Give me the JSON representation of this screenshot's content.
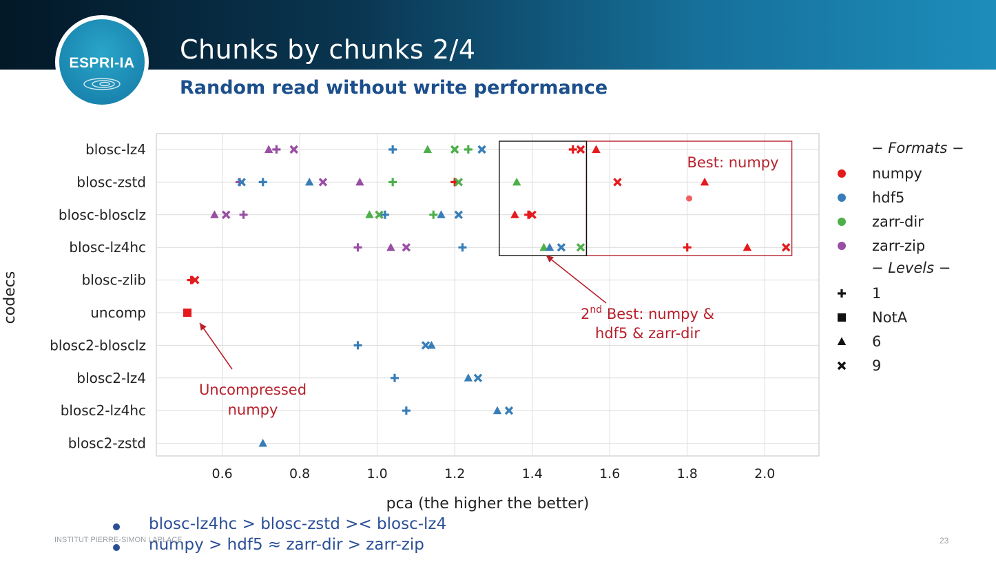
{
  "slide": {
    "logo_text": "ESPRI-IA",
    "title": "Chunks by chunks 2/4",
    "subtitle": "Random read without write performance",
    "footer": "INSTITUT PIERRE-SIMON LAPLACE",
    "page_number": "23",
    "bullets": [
      "blosc-lz4hc > blosc-zstd >< blosc-lz4",
      "numpy > hdf5 ≈ zarr-dir > zarr-zip"
    ],
    "colors": {
      "header_dark": "#021827",
      "header_light": "#1d8dbb",
      "accent": "#1c4f8c",
      "annotation": "#b8202c"
    }
  },
  "chart_data": {
    "type": "scatter",
    "xlabel": "pca (the higher the better)",
    "ylabel": "codecs",
    "xlim": [
      0.43,
      2.14
    ],
    "xticks": [
      0.6,
      0.8,
      1.0,
      1.2,
      1.4,
      1.6,
      1.8,
      2.0
    ],
    "xtick_labels": [
      "0.6",
      "0.8",
      "1.0",
      "1.2",
      "1.4",
      "1.6",
      "1.8",
      "2.0"
    ],
    "categories": [
      "blosc-lz4",
      "blosc-zstd",
      "blosc-blosclz",
      "blosc-lz4hc",
      "blosc-zlib",
      "uncomp",
      "blosc2-blosclz",
      "blosc2-lz4",
      "blosc2-lz4hc",
      "blosc2-zstd"
    ],
    "grid": true,
    "legend_position": "right",
    "formats_title": "− Formats −",
    "levels_title": "− Levels −",
    "formats": [
      {
        "name": "numpy",
        "color": "#e41a1c"
      },
      {
        "name": "hdf5",
        "color": "#377eb8"
      },
      {
        "name": "zarr-dir",
        "color": "#4daf4a"
      },
      {
        "name": "zarr-zip",
        "color": "#984ea3"
      }
    ],
    "levels": [
      {
        "name": "1",
        "marker": "plus"
      },
      {
        "name": "NotA",
        "marker": "square"
      },
      {
        "name": "6",
        "marker": "triangle"
      },
      {
        "name": "9",
        "marker": "x"
      }
    ],
    "points": [
      {
        "codec": "blosc-lz4",
        "format": "zarr-zip",
        "level": "6",
        "x": 0.72
      },
      {
        "codec": "blosc-lz4",
        "format": "zarr-zip",
        "level": "1",
        "x": 0.74
      },
      {
        "codec": "blosc-lz4",
        "format": "zarr-zip",
        "level": "9",
        "x": 0.785
      },
      {
        "codec": "blosc-lz4",
        "format": "hdf5",
        "level": "1",
        "x": 1.04
      },
      {
        "codec": "blosc-lz4",
        "format": "zarr-dir",
        "level": "6",
        "x": 1.13
      },
      {
        "codec": "blosc-lz4",
        "format": "zarr-dir",
        "level": "9",
        "x": 1.2
      },
      {
        "codec": "blosc-lz4",
        "format": "zarr-dir",
        "level": "1",
        "x": 1.235
      },
      {
        "codec": "blosc-lz4",
        "format": "hdf5",
        "level": "9",
        "x": 1.27
      },
      {
        "codec": "blosc-lz4",
        "format": "numpy",
        "level": "1",
        "x": 1.505
      },
      {
        "codec": "blosc-lz4",
        "format": "numpy",
        "level": "9",
        "x": 1.525
      },
      {
        "codec": "blosc-lz4",
        "format": "numpy",
        "level": "6",
        "x": 1.565
      },
      {
        "codec": "blosc-zstd",
        "format": "zarr-zip",
        "level": "1",
        "x": 0.645
      },
      {
        "codec": "blosc-zstd",
        "format": "hdf5",
        "level": "9",
        "x": 0.65
      },
      {
        "codec": "blosc-zstd",
        "format": "hdf5",
        "level": "1",
        "x": 0.705
      },
      {
        "codec": "blosc-zstd",
        "format": "hdf5",
        "level": "6",
        "x": 0.825
      },
      {
        "codec": "blosc-zstd",
        "format": "zarr-zip",
        "level": "9",
        "x": 0.86
      },
      {
        "codec": "blosc-zstd",
        "format": "zarr-zip",
        "level": "6",
        "x": 0.955
      },
      {
        "codec": "blosc-zstd",
        "format": "zarr-dir",
        "level": "1",
        "x": 1.04
      },
      {
        "codec": "blosc-zstd",
        "format": "numpy",
        "level": "1",
        "x": 1.2
      },
      {
        "codec": "blosc-zstd",
        "format": "zarr-dir",
        "level": "9",
        "x": 1.21
      },
      {
        "codec": "blosc-zstd",
        "format": "zarr-dir",
        "level": "6",
        "x": 1.36
      },
      {
        "codec": "blosc-zstd",
        "format": "numpy",
        "level": "9",
        "x": 1.62
      },
      {
        "codec": "blosc-zstd",
        "format": "numpy",
        "level": "6",
        "x": 1.845
      },
      {
        "codec": "blosc-blosclz",
        "format": "zarr-zip",
        "level": "6",
        "x": 0.58
      },
      {
        "codec": "blosc-blosclz",
        "format": "zarr-zip",
        "level": "9",
        "x": 0.61
      },
      {
        "codec": "blosc-blosclz",
        "format": "zarr-zip",
        "level": "1",
        "x": 0.655
      },
      {
        "codec": "blosc-blosclz",
        "format": "zarr-dir",
        "level": "6",
        "x": 0.98
      },
      {
        "codec": "blosc-blosclz",
        "format": "zarr-dir",
        "level": "9",
        "x": 1.005
      },
      {
        "codec": "blosc-blosclz",
        "format": "hdf5",
        "level": "1",
        "x": 1.02
      },
      {
        "codec": "blosc-blosclz",
        "format": "zarr-dir",
        "level": "1",
        "x": 1.145
      },
      {
        "codec": "blosc-blosclz",
        "format": "hdf5",
        "level": "6",
        "x": 1.165
      },
      {
        "codec": "blosc-blosclz",
        "format": "hdf5",
        "level": "9",
        "x": 1.21
      },
      {
        "codec": "blosc-blosclz",
        "format": "numpy",
        "level": "6",
        "x": 1.355
      },
      {
        "codec": "blosc-blosclz",
        "format": "numpy",
        "level": "1",
        "x": 1.39
      },
      {
        "codec": "blosc-blosclz",
        "format": "numpy",
        "level": "9",
        "x": 1.4
      },
      {
        "codec": "blosc-lz4hc",
        "format": "zarr-zip",
        "level": "1",
        "x": 0.95
      },
      {
        "codec": "blosc-lz4hc",
        "format": "zarr-zip",
        "level": "6",
        "x": 1.035
      },
      {
        "codec": "blosc-lz4hc",
        "format": "zarr-zip",
        "level": "9",
        "x": 1.075
      },
      {
        "codec": "blosc-lz4hc",
        "format": "hdf5",
        "level": "1",
        "x": 1.22
      },
      {
        "codec": "blosc-lz4hc",
        "format": "zarr-dir",
        "level": "6",
        "x": 1.43
      },
      {
        "codec": "blosc-lz4hc",
        "format": "hdf5",
        "level": "6",
        "x": 1.445
      },
      {
        "codec": "blosc-lz4hc",
        "format": "hdf5",
        "level": "9",
        "x": 1.475
      },
      {
        "codec": "blosc-lz4hc",
        "format": "zarr-dir",
        "level": "9",
        "x": 1.525
      },
      {
        "codec": "blosc-lz4hc",
        "format": "numpy",
        "level": "1",
        "x": 1.8
      },
      {
        "codec": "blosc-lz4hc",
        "format": "numpy",
        "level": "6",
        "x": 1.955
      },
      {
        "codec": "blosc-lz4hc",
        "format": "numpy",
        "level": "9",
        "x": 2.055
      },
      {
        "codec": "blosc-zlib",
        "format": "numpy",
        "level": "1",
        "x": 0.52
      },
      {
        "codec": "blosc-zlib",
        "format": "numpy",
        "level": "9",
        "x": 0.53
      },
      {
        "codec": "uncomp",
        "format": "numpy",
        "level": "NotA",
        "x": 0.51
      },
      {
        "codec": "blosc2-blosclz",
        "format": "hdf5",
        "level": "1",
        "x": 0.95
      },
      {
        "codec": "blosc2-blosclz",
        "format": "hdf5",
        "level": "9",
        "x": 1.125
      },
      {
        "codec": "blosc2-blosclz",
        "format": "hdf5",
        "level": "6",
        "x": 1.14
      },
      {
        "codec": "blosc2-lz4",
        "format": "hdf5",
        "level": "1",
        "x": 1.045
      },
      {
        "codec": "blosc2-lz4",
        "format": "hdf5",
        "level": "6",
        "x": 1.235
      },
      {
        "codec": "blosc2-lz4",
        "format": "hdf5",
        "level": "9",
        "x": 1.26
      },
      {
        "codec": "blosc2-lz4hc",
        "format": "hdf5",
        "level": "1",
        "x": 1.075
      },
      {
        "codec": "blosc2-lz4hc",
        "format": "hdf5",
        "level": "6",
        "x": 1.31
      },
      {
        "codec": "blosc2-lz4hc",
        "format": "hdf5",
        "level": "9",
        "x": 1.34
      },
      {
        "codec": "blosc2-zstd",
        "format": "hdf5",
        "level": "6",
        "x": 0.705
      }
    ],
    "extra_point": {
      "x": 1.805,
      "y_between": [
        "blosc-zstd",
        "blosc-blosclz"
      ],
      "color": "#f06060"
    },
    "annotations": {
      "best": "Best: numpy",
      "second_best_prefix": "2",
      "second_best_sup": "nd",
      "second_best_line1": " Best: numpy &",
      "second_best_line2": "hdf5 & zarr-dir",
      "uncompressed_line1": "Uncompressed",
      "uncompressed_line2": "numpy"
    },
    "best_box": {
      "x": [
        1.54,
        2.07
      ],
      "codecs": [
        "blosc-lz4",
        "blosc-lz4hc"
      ]
    },
    "second_box": {
      "x": [
        1.315,
        1.54
      ],
      "codecs": [
        "blosc-lz4",
        "blosc-lz4hc"
      ]
    }
  }
}
